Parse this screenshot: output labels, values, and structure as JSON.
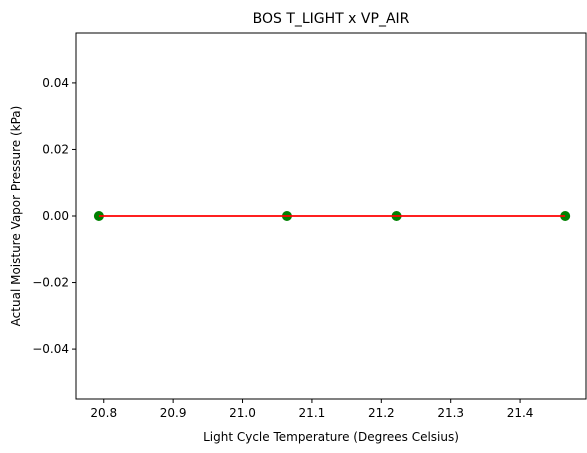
{
  "chart_data": {
    "type": "scatter",
    "title": "BOS T_LIGHT x VP_AIR",
    "xlabel": "Light Cycle Temperature (Degrees Celsius)",
    "ylabel": "Actual Moisture Vapor Pressure (kPa)",
    "xlim": [
      20.76,
      21.495
    ],
    "ylim": [
      -0.055,
      0.055
    ],
    "xticks": [
      20.8,
      20.9,
      21.0,
      21.1,
      21.2,
      21.3,
      21.4
    ],
    "xtick_labels": [
      "20.8",
      "20.9",
      "21.0",
      "21.1",
      "21.2",
      "21.3",
      "21.4"
    ],
    "yticks": [
      0.04,
      0.02,
      0.0,
      -0.02,
      -0.04
    ],
    "ytick_labels": [
      "0.04",
      "0.02",
      "0.00",
      "−0.02",
      "−0.04"
    ],
    "grid": false,
    "series": [
      {
        "marker_color": "#008000",
        "x": [
          20.793,
          21.064,
          21.222,
          21.465
        ],
        "y": [
          0,
          0,
          0,
          0
        ]
      }
    ],
    "fit_line": {
      "color": "#ff0000",
      "x": [
        20.793,
        21.465
      ],
      "y": [
        0,
        0
      ]
    }
  }
}
